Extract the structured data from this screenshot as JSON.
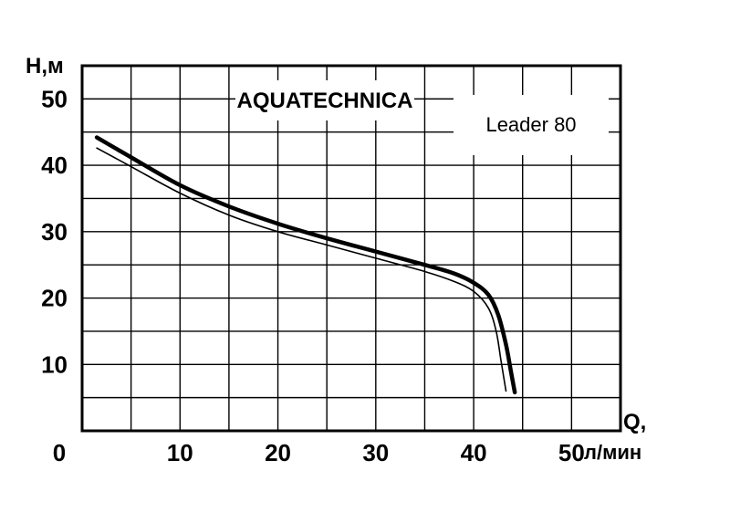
{
  "chart_data": {
    "type": "line",
    "brand": "AQUATECHNICA",
    "model": "Leader 80",
    "ylabel": "H,м",
    "xlabel": "Q,",
    "xunit": "л/мин",
    "xlim": [
      0,
      55
    ],
    "ylim": [
      0,
      55
    ],
    "x_ticks": [
      "0",
      "10",
      "20",
      "30",
      "40",
      "50"
    ],
    "y_ticks": [
      "10",
      "20",
      "30",
      "40",
      "50"
    ],
    "grid": true,
    "series": [
      {
        "style": "thick",
        "color": "#000000",
        "x": [
          1.5,
          5,
          10,
          15,
          20,
          25,
          30,
          35,
          38,
          40,
          41.5,
          42.5,
          43.3,
          43.8,
          44.2
        ],
        "y": [
          44.2,
          41.2,
          37,
          33.8,
          31.2,
          29,
          27,
          25,
          23.7,
          22.3,
          20.5,
          17.5,
          13,
          9,
          5.8
        ]
      },
      {
        "style": "thin",
        "color": "#000000",
        "x": [
          1.5,
          5,
          10,
          15,
          20,
          25,
          30,
          35,
          38,
          40,
          41.5,
          42.3,
          42.8,
          43.3
        ],
        "y": [
          42.6,
          39.8,
          35.8,
          32.5,
          30,
          28,
          26,
          24,
          22.5,
          21,
          18.5,
          15,
          10.5,
          6
        ]
      }
    ]
  }
}
